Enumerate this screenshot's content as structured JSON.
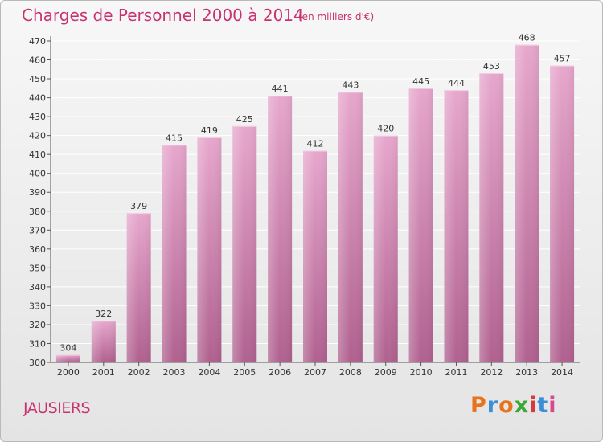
{
  "header": {
    "title": "Charges de Personnel 2000 à 2014",
    "subtitle": "(en milliers d'€)"
  },
  "footer": {
    "commune": "JAUSIERS",
    "logo": "Proxiti"
  },
  "colors": {
    "accent": "#c8336f",
    "bar_top": "#e7a7cd",
    "bar_bottom": "#b0618f",
    "logo_letters": [
      "#e8731c",
      "#3a8fd6",
      "#e8731c",
      "#3aa832",
      "#d63a3a",
      "#3a8fd6",
      "#d64a8c"
    ]
  },
  "chart_data": {
    "type": "bar",
    "categories": [
      "2000",
      "2001",
      "2002",
      "2003",
      "2004",
      "2005",
      "2006",
      "2007",
      "2008",
      "2009",
      "2010",
      "2011",
      "2012",
      "2013",
      "2014"
    ],
    "values": [
      304,
      322,
      379,
      415,
      419,
      425,
      441,
      412,
      443,
      420,
      445,
      444,
      453,
      468,
      457
    ],
    "title": "Charges de Personnel 2000 à 2014",
    "subtitle": "(en milliers d'€)",
    "xlabel": "",
    "ylabel": "",
    "ylim": [
      300,
      470
    ],
    "yticks": [
      300,
      310,
      320,
      330,
      340,
      350,
      360,
      370,
      380,
      390,
      400,
      410,
      420,
      430,
      440,
      450,
      460,
      470
    ],
    "grid": true,
    "data_labels": true,
    "legend": "none"
  }
}
